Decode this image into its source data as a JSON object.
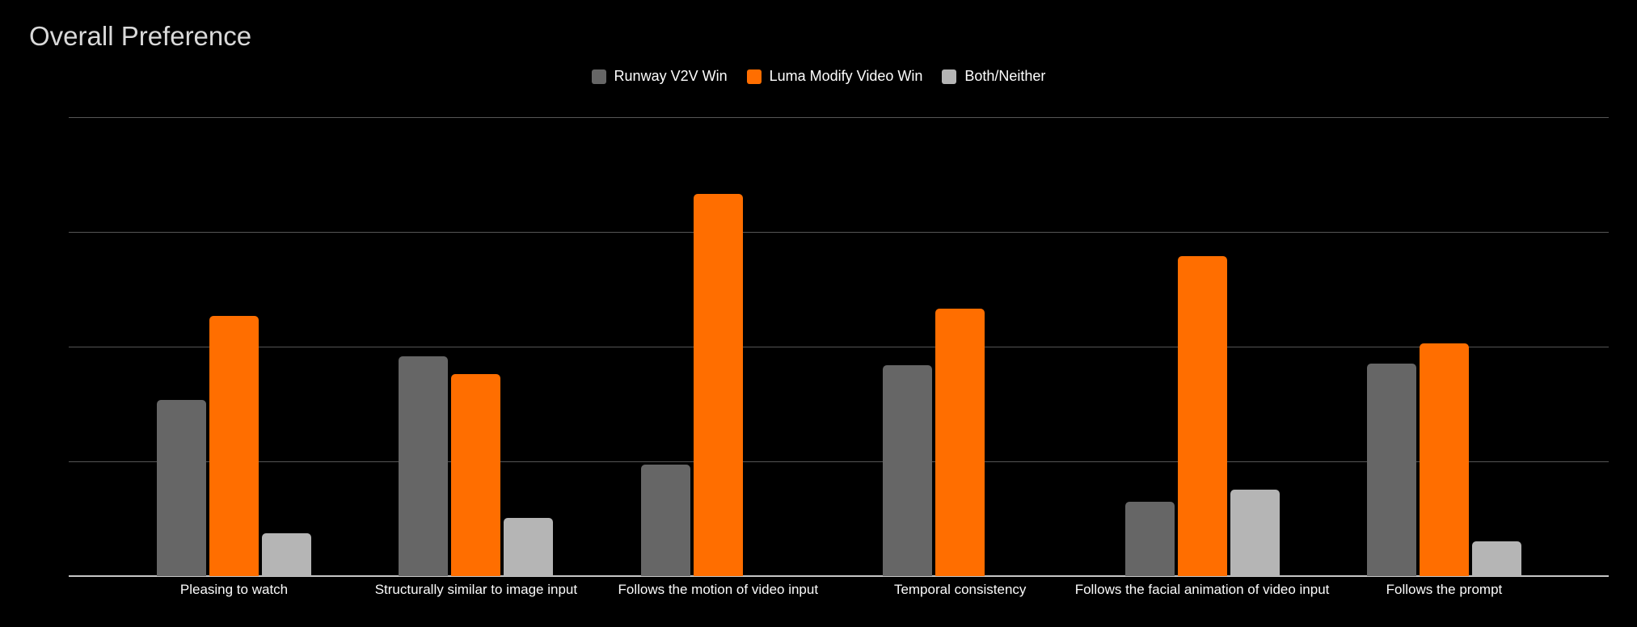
{
  "chart_data": {
    "type": "bar",
    "title": "Overall Preference",
    "categories": [
      "Pleasing to watch",
      "Structurally similar to image input",
      "Follows the motion of video input",
      "Temporal consistency",
      "Follows the facial animation of video input",
      "Follows the prompt"
    ],
    "series": [
      {
        "name": "Runway V2V Win",
        "color": "#666666",
        "values": [
          38.4,
          47.9,
          24.3,
          45.9,
          16.2,
          46.3
        ]
      },
      {
        "name": "Luma Modify Video Win",
        "color": "#ff6e00",
        "values": [
          56.7,
          44.0,
          83.3,
          58.3,
          69.7,
          50.7
        ]
      },
      {
        "name": "Both/Neither",
        "color": "#b5b5b5",
        "values": [
          9.3,
          12.7,
          0,
          0,
          18.8,
          7.6
        ]
      }
    ],
    "xlabel": "",
    "ylabel": "",
    "ylim": [
      0,
      100
    ],
    "gridline_values": [
      25,
      50,
      75,
      100
    ],
    "y_tick_labels_visible": false,
    "grid": true,
    "legend_position": "top-center",
    "background": "#000000",
    "title_color": "#d9d9d9",
    "label_color": "#ffffff"
  }
}
